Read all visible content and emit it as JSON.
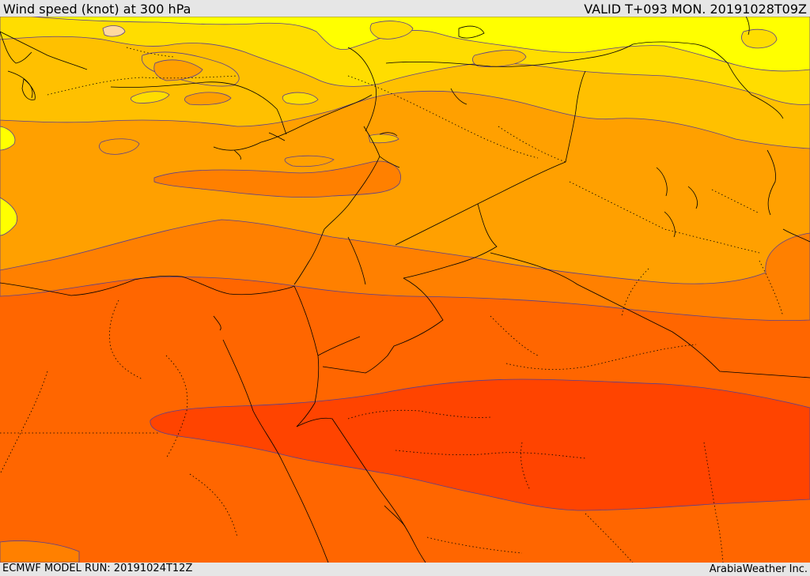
{
  "header": {
    "title": "Wind speed (knot) at 300 hPa",
    "valid": "VALID T+093 MON. 20191028T09Z"
  },
  "footer": {
    "model_run": "ECMWF MODEL RUN: 20191024T12Z",
    "credit": "ArabiaWeather Inc."
  },
  "map": {
    "region": "Eastern Mediterranean / Levant / Egypt / northern Arabia",
    "layer": "filled wind-speed bands",
    "colors": {
      "band_1": "#ffff00",
      "band_2": "#ffdd00",
      "band_3": "#ffc000",
      "band_4": "#ffa000",
      "band_5": "#ff8000",
      "band_6": "#ff6600",
      "band_7": "#ff4400",
      "contour_line": "#5a3f8f",
      "coastline": "#000000"
    }
  }
}
